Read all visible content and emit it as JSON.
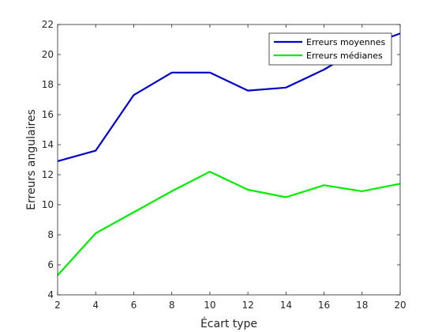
{
  "chart_data": {
    "type": "line",
    "title": "",
    "xlabel": "Écart type",
    "ylabel": "Erreurs angulaires",
    "x": [
      2,
      4,
      6,
      8,
      10,
      12,
      14,
      16,
      18,
      20
    ],
    "xlim": [
      2,
      20
    ],
    "ylim": [
      4,
      22
    ],
    "xticks": [
      2,
      4,
      6,
      8,
      10,
      12,
      14,
      16,
      18,
      20
    ],
    "yticks": [
      4,
      6,
      8,
      10,
      12,
      14,
      16,
      18,
      20,
      22
    ],
    "grid": false,
    "legend_position": "top-right",
    "series": [
      {
        "name": "Erreurs moyennes",
        "color": "#0000cc",
        "values": [
          12.9,
          13.6,
          17.3,
          18.8,
          18.8,
          17.6,
          17.8,
          19.0,
          20.5,
          21.4
        ]
      },
      {
        "name": "Erreurs médianes",
        "color": "#00ee00",
        "values": [
          5.3,
          8.1,
          9.5,
          10.9,
          12.2,
          11.0,
          10.5,
          11.3,
          10.9,
          11.4
        ]
      }
    ]
  }
}
